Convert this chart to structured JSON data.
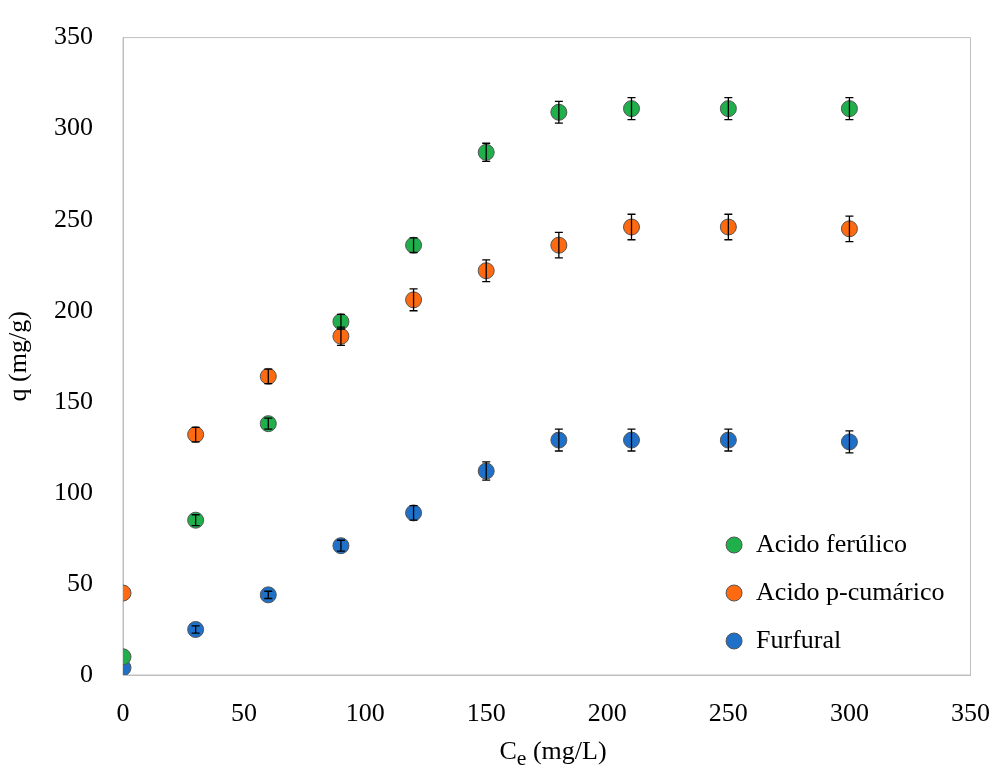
{
  "chart_data": {
    "type": "scatter",
    "xlabel": "C$_{e}$ (mg/L)",
    "ylabel": "q (mg/g)",
    "xlim": [
      0,
      350
    ],
    "xticks": [
      0,
      50,
      100,
      150,
      200,
      250,
      300,
      350
    ],
    "ylim": [
      0,
      350
    ],
    "yticks": [
      0,
      50,
      100,
      150,
      200,
      250,
      300,
      350
    ],
    "grid": false,
    "legend": "bottom right",
    "marker": "circle",
    "x": [
      0,
      30,
      60,
      90,
      120,
      150,
      180,
      210,
      250,
      300
    ],
    "series": [
      {
        "name": "Acido ferúlico",
        "color": "#1fb04b",
        "values": [
          10,
          85,
          138,
          194,
          236,
          287,
          309,
          311,
          311,
          311
        ],
        "errors": [
          null,
          3,
          3,
          4,
          4,
          5,
          6,
          6,
          6,
          6
        ]
      },
      {
        "name": "Acido p-cumárico",
        "color": "#ff6a10",
        "values": [
          45,
          132,
          164,
          186,
          206,
          222,
          236,
          246,
          246,
          245
        ],
        "errors": [
          null,
          4,
          4,
          5,
          6,
          6,
          7,
          7,
          7,
          7
        ]
      },
      {
        "name": "Furfural",
        "color": "#1e70c8",
        "values": [
          4,
          25,
          44,
          71,
          89,
          112,
          129,
          129,
          129,
          128
        ],
        "errors": [
          null,
          2,
          2,
          3,
          4,
          5,
          6,
          6,
          6,
          6
        ]
      }
    ]
  }
}
